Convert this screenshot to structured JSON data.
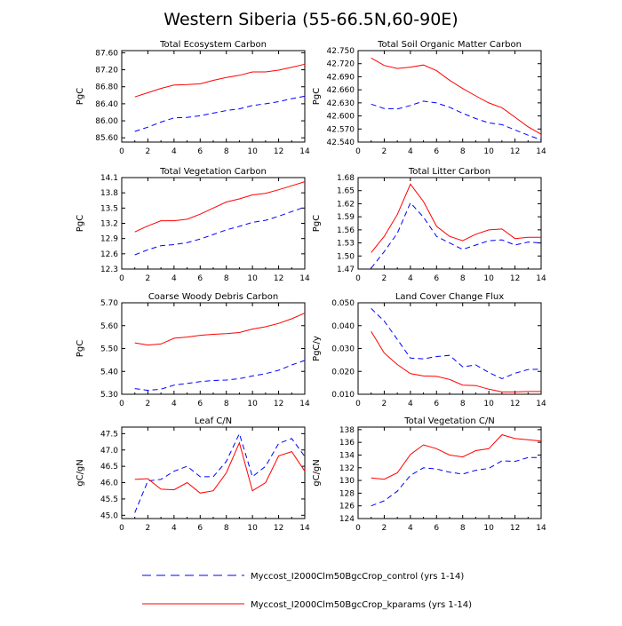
{
  "title": "Western Siberia (55-66.5N,60-90E)",
  "legend": [
    {
      "label": "Myccost_I2000Clm50BgcCrop_control (yrs 1-14)",
      "color": "#0000ff",
      "dash": "dashed"
    },
    {
      "label": "Myccost_I2000Clm50BgcCrop_kparams (yrs 1-14)",
      "color": "#ff0000",
      "dash": "solid"
    }
  ],
  "chart_data": [
    {
      "type": "line",
      "title": "Total Ecosystem Carbon",
      "ylabel": "PgC",
      "xlim": [
        0,
        14
      ],
      "ylim": [
        85.5,
        87.65
      ],
      "xticks": [
        "0",
        "2",
        "4",
        "6",
        "8",
        "10",
        "12",
        "14"
      ],
      "yticks": [
        "85.60",
        "86.00",
        "86.40",
        "86.80",
        "87.20",
        "87.60"
      ],
      "ytick_values": [
        85.6,
        86.0,
        86.4,
        86.8,
        87.2,
        87.6
      ],
      "x": [
        1,
        2,
        3,
        4,
        5,
        6,
        7,
        8,
        9,
        10,
        11,
        12,
        13,
        14
      ],
      "series": [
        {
          "name": "control",
          "values": [
            85.75,
            85.85,
            85.97,
            86.07,
            86.08,
            86.12,
            86.18,
            86.24,
            86.28,
            86.36,
            86.4,
            86.45,
            86.52,
            86.58
          ]
        },
        {
          "name": "kparams",
          "values": [
            86.56,
            86.66,
            86.76,
            86.84,
            86.85,
            86.87,
            86.95,
            87.02,
            87.07,
            87.15,
            87.15,
            87.19,
            87.26,
            87.33
          ]
        }
      ]
    },
    {
      "type": "line",
      "title": "Total Soil Organic Matter Carbon",
      "ylabel": "PgC",
      "xlim": [
        0,
        14
      ],
      "ylim": [
        42.54,
        42.75
      ],
      "xticks": [
        "0",
        "2",
        "4",
        "6",
        "8",
        "10",
        "12",
        "14"
      ],
      "yticks": [
        "42.540",
        "42.570",
        "42.600",
        "42.630",
        "42.660",
        "42.690",
        "42.720",
        "42.750"
      ],
      "ytick_values": [
        42.54,
        42.57,
        42.6,
        42.63,
        42.66,
        42.69,
        42.72,
        42.75
      ],
      "x": [
        1,
        2,
        3,
        4,
        5,
        6,
        7,
        8,
        9,
        10,
        11,
        12,
        13,
        14
      ],
      "series": [
        {
          "name": "control",
          "values": [
            42.627,
            42.617,
            42.616,
            42.624,
            42.634,
            42.63,
            42.62,
            42.606,
            42.594,
            42.584,
            42.58,
            42.568,
            42.556,
            42.545
          ]
        },
        {
          "name": "kparams",
          "values": [
            42.733,
            42.716,
            42.709,
            42.712,
            42.717,
            42.704,
            42.682,
            42.663,
            42.646,
            42.63,
            42.619,
            42.597,
            42.575,
            42.558
          ]
        }
      ]
    },
    {
      "type": "line",
      "title": "Total Vegetation Carbon",
      "ylabel": "PgC",
      "xlim": [
        0,
        14
      ],
      "ylim": [
        12.3,
        14.1
      ],
      "xticks": [
        "0",
        "2",
        "4",
        "6",
        "8",
        "10",
        "12",
        "14"
      ],
      "yticks": [
        "12.3",
        "12.6",
        "12.9",
        "13.2",
        "13.5",
        "13.8",
        "14.1"
      ],
      "ytick_values": [
        12.3,
        12.6,
        12.9,
        13.2,
        13.5,
        13.8,
        14.1
      ],
      "x": [
        1,
        2,
        3,
        4,
        5,
        6,
        7,
        8,
        9,
        10,
        11,
        12,
        13,
        14
      ],
      "series": [
        {
          "name": "control",
          "values": [
            12.58,
            12.68,
            12.76,
            12.78,
            12.82,
            12.89,
            12.98,
            13.07,
            13.14,
            13.22,
            13.26,
            13.34,
            13.43,
            13.52
          ]
        },
        {
          "name": "kparams",
          "values": [
            13.03,
            13.15,
            13.25,
            13.25,
            13.28,
            13.38,
            13.5,
            13.62,
            13.68,
            13.76,
            13.79,
            13.86,
            13.94,
            14.02
          ]
        }
      ]
    },
    {
      "type": "line",
      "title": "Total Litter Carbon",
      "ylabel": "PgC",
      "xlim": [
        0,
        14
      ],
      "ylim": [
        1.47,
        1.68
      ],
      "xticks": [
        "0",
        "2",
        "4",
        "6",
        "8",
        "10",
        "12",
        "14"
      ],
      "yticks": [
        "1.47",
        "1.50",
        "1.53",
        "1.56",
        "1.59",
        "1.62",
        "1.65",
        "1.68"
      ],
      "ytick_values": [
        1.47,
        1.5,
        1.53,
        1.56,
        1.59,
        1.62,
        1.65,
        1.68
      ],
      "x": [
        1,
        2,
        3,
        4,
        5,
        6,
        7,
        8,
        9,
        10,
        11,
        12,
        13,
        14
      ],
      "series": [
        {
          "name": "control",
          "values": [
            1.472,
            1.51,
            1.552,
            1.622,
            1.589,
            1.545,
            1.53,
            1.515,
            1.525,
            1.535,
            1.537,
            1.525,
            1.532,
            1.53
          ]
        },
        {
          "name": "kparams",
          "values": [
            1.508,
            1.545,
            1.595,
            1.665,
            1.625,
            1.568,
            1.545,
            1.535,
            1.55,
            1.56,
            1.562,
            1.54,
            1.543,
            1.543
          ]
        }
      ]
    },
    {
      "type": "line",
      "title": "Coarse Woody Debris Carbon",
      "ylabel": "PgC",
      "xlim": [
        0,
        14
      ],
      "ylim": [
        5.3,
        5.7
      ],
      "xticks": [
        "0",
        "2",
        "4",
        "6",
        "8",
        "10",
        "12",
        "14"
      ],
      "yticks": [
        "5.30",
        "5.40",
        "5.50",
        "5.60",
        "5.70"
      ],
      "ytick_values": [
        5.3,
        5.4,
        5.5,
        5.6,
        5.7
      ],
      "x": [
        1,
        2,
        3,
        4,
        5,
        6,
        7,
        8,
        9,
        10,
        11,
        12,
        13,
        14
      ],
      "series": [
        {
          "name": "control",
          "values": [
            5.325,
            5.317,
            5.322,
            5.34,
            5.347,
            5.355,
            5.36,
            5.362,
            5.368,
            5.38,
            5.39,
            5.405,
            5.428,
            5.448
          ]
        },
        {
          "name": "kparams",
          "values": [
            5.525,
            5.515,
            5.52,
            5.545,
            5.55,
            5.558,
            5.562,
            5.565,
            5.57,
            5.585,
            5.595,
            5.61,
            5.63,
            5.655
          ]
        }
      ]
    },
    {
      "type": "line",
      "title": "Land Cover Change Flux",
      "ylabel": "PgC/y",
      "xlim": [
        0,
        14
      ],
      "ylim": [
        0.01,
        0.05
      ],
      "xticks": [
        "0",
        "2",
        "4",
        "6",
        "8",
        "10",
        "12",
        "14"
      ],
      "yticks": [
        "0.010",
        "0.020",
        "0.030",
        "0.040",
        "0.050"
      ],
      "ytick_values": [
        0.01,
        0.02,
        0.03,
        0.04,
        0.05
      ],
      "x": [
        1,
        2,
        3,
        4,
        5,
        6,
        7,
        8,
        9,
        10,
        11,
        12,
        13,
        14
      ],
      "series": [
        {
          "name": "control",
          "values": [
            0.0475,
            0.042,
            0.034,
            0.0258,
            0.0255,
            0.0265,
            0.027,
            0.022,
            0.0228,
            0.0195,
            0.0168,
            0.0192,
            0.0208,
            0.021
          ]
        },
        {
          "name": "kparams",
          "values": [
            0.0375,
            0.028,
            0.023,
            0.019,
            0.018,
            0.0178,
            0.0165,
            0.014,
            0.0138,
            0.0122,
            0.011,
            0.011,
            0.0112,
            0.0112
          ]
        }
      ]
    },
    {
      "type": "line",
      "title": "Leaf C/N",
      "ylabel": "gC/gN",
      "xlim": [
        0,
        14
      ],
      "ylim": [
        44.9,
        47.7
      ],
      "xticks": [
        "0",
        "2",
        "4",
        "6",
        "8",
        "10",
        "12",
        "14"
      ],
      "yticks": [
        "45.0",
        "45.5",
        "46.0",
        "46.5",
        "47.0",
        "47.5"
      ],
      "ytick_values": [
        45.0,
        45.5,
        46.0,
        46.5,
        47.0,
        47.5
      ],
      "x": [
        1,
        2,
        3,
        4,
        5,
        6,
        7,
        8,
        9,
        10,
        11,
        12,
        13,
        14
      ],
      "series": [
        {
          "name": "control",
          "values": [
            45.08,
            46.05,
            46.1,
            46.35,
            46.5,
            46.18,
            46.18,
            46.65,
            47.5,
            46.18,
            46.5,
            47.2,
            47.35,
            46.8
          ]
        },
        {
          "name": "kparams",
          "values": [
            46.1,
            46.12,
            45.8,
            45.78,
            46.0,
            45.68,
            45.75,
            46.3,
            47.22,
            45.75,
            46.0,
            46.82,
            46.95,
            46.35
          ]
        }
      ]
    },
    {
      "type": "line",
      "title": "Total Vegetation C/N",
      "ylabel": "gC/gN",
      "xlim": [
        0,
        14
      ],
      "ylim": [
        124,
        138.4
      ],
      "xticks": [
        "0",
        "2",
        "4",
        "6",
        "8",
        "10",
        "12",
        "14"
      ],
      "yticks": [
        "124",
        "126",
        "128",
        "130",
        "132",
        "134",
        "136",
        "138"
      ],
      "ytick_values": [
        124,
        126,
        128,
        130,
        132,
        134,
        136,
        138
      ],
      "x": [
        1,
        2,
        3,
        4,
        5,
        6,
        7,
        8,
        9,
        10,
        11,
        12,
        13,
        14
      ],
      "series": [
        {
          "name": "control",
          "values": [
            126.0,
            126.8,
            128.3,
            130.8,
            132.0,
            131.8,
            131.3,
            131.0,
            131.6,
            131.9,
            133.1,
            133.0,
            133.6,
            133.6
          ]
        },
        {
          "name": "kparams",
          "values": [
            130.4,
            130.2,
            131.2,
            134.1,
            135.6,
            135.0,
            134.0,
            133.7,
            134.7,
            135.0,
            137.2,
            136.6,
            136.4,
            136.2
          ]
        }
      ]
    }
  ]
}
